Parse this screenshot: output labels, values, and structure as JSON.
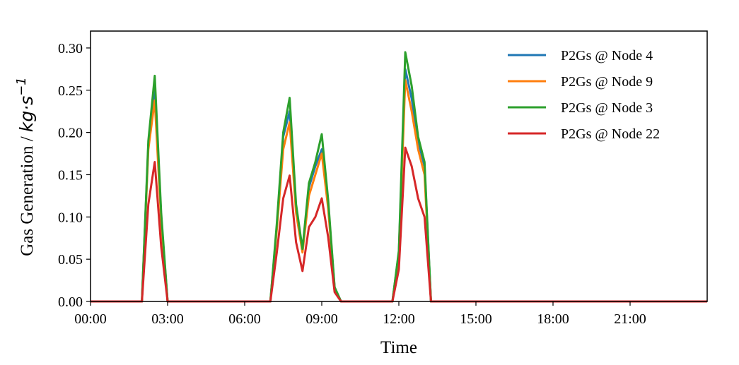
{
  "chart_data": {
    "type": "line",
    "title": "",
    "xlabel": "Time",
    "ylabel": "Gas Generation / ",
    "ylabel_unit": "kg·s",
    "ylabel_unit_exp": "−1",
    "xlim": [
      0,
      24
    ],
    "ylim": [
      0,
      0.32
    ],
    "grid": false,
    "legend_position": "top-right",
    "x_ticks": [
      0,
      3,
      6,
      9,
      12,
      15,
      18,
      21
    ],
    "x_tick_labels": [
      "00:00",
      "03:00",
      "06:00",
      "09:00",
      "12:00",
      "15:00",
      "18:00",
      "21:00"
    ],
    "y_ticks": [
      0,
      0.05,
      0.1,
      0.15,
      0.2,
      0.25,
      0.3
    ],
    "y_tick_labels": [
      "0.00",
      "0.05",
      "0.10",
      "0.15",
      "0.20",
      "0.25",
      "0.30"
    ],
    "x": [
      0,
      2.0,
      2.25,
      2.5,
      2.75,
      3.0,
      7.0,
      7.25,
      7.5,
      7.75,
      8.0,
      8.25,
      8.5,
      8.75,
      9.0,
      9.25,
      9.5,
      9.75,
      10.0,
      11.75,
      12.0,
      12.25,
      12.5,
      12.75,
      13.0,
      13.25,
      24.0
    ],
    "series": [
      {
        "name": "P2Gs @ Node 4",
        "color": "#1f77b4",
        "values": [
          0,
          0,
          0.185,
          0.255,
          0.1,
          0,
          0,
          0.088,
          0.195,
          0.225,
          0.11,
          0.06,
          0.135,
          0.16,
          0.18,
          0.115,
          0.016,
          0,
          0,
          0,
          0.058,
          0.275,
          0.24,
          0.19,
          0.16,
          0,
          0
        ]
      },
      {
        "name": "P2Gs @ Node 9",
        "color": "#ff7f0e",
        "values": [
          0,
          0,
          0.18,
          0.238,
          0.095,
          0,
          0,
          0.085,
          0.18,
          0.212,
          0.105,
          0.058,
          0.125,
          0.15,
          0.175,
          0.11,
          0.015,
          0,
          0,
          0,
          0.055,
          0.262,
          0.225,
          0.18,
          0.15,
          0,
          0
        ]
      },
      {
        "name": "P2Gs @ Node 3",
        "color": "#2ca02c",
        "values": [
          0,
          0,
          0.19,
          0.267,
          0.105,
          0,
          0,
          0.092,
          0.2,
          0.241,
          0.115,
          0.062,
          0.14,
          0.165,
          0.198,
          0.12,
          0.017,
          0,
          0,
          0,
          0.06,
          0.295,
          0.255,
          0.195,
          0.165,
          0,
          0
        ]
      },
      {
        "name": "P2Gs @ Node 22",
        "color": "#d62728",
        "values": [
          0,
          0,
          0.115,
          0.165,
          0.065,
          0,
          0,
          0.058,
          0.122,
          0.149,
          0.07,
          0.036,
          0.088,
          0.1,
          0.122,
          0.076,
          0.011,
          0,
          0,
          0,
          0.038,
          0.182,
          0.16,
          0.122,
          0.1,
          0,
          0
        ]
      }
    ]
  }
}
